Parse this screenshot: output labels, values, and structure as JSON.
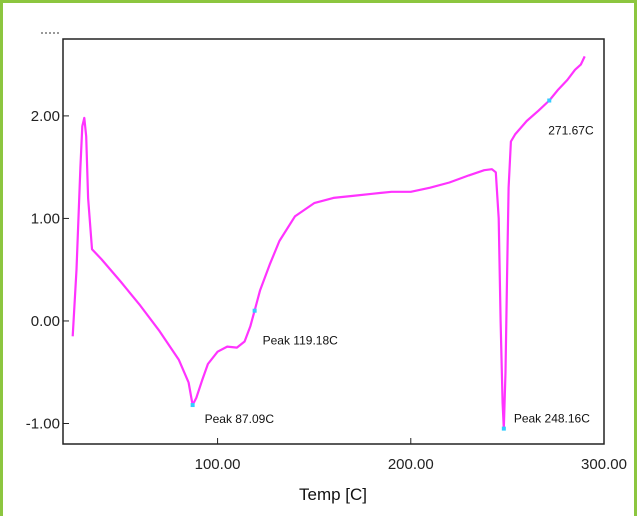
{
  "chart_data": {
    "type": "line",
    "title": "",
    "xlabel": "Temp  [C]",
    "ylabel": "",
    "xlim": [
      20,
      300
    ],
    "ylim": [
      -1.2,
      2.75
    ],
    "x_ticks": [
      {
        "value": 100,
        "label": "100.00"
      },
      {
        "value": 200,
        "label": "200.00"
      },
      {
        "value": 300,
        "label": "300.00"
      }
    ],
    "y_ticks": [
      {
        "value": 2.0,
        "label": "2.00"
      },
      {
        "value": 1.0,
        "label": "1.00"
      },
      {
        "value": 0.0,
        "label": "0.00"
      },
      {
        "value": -1.0,
        "label": "-1.00"
      }
    ],
    "grid": false,
    "line_color": "#ff33ff",
    "marker_color": "#33ccff",
    "series": [
      {
        "x": [
          25,
          27,
          29,
          30,
          31,
          32,
          33,
          35,
          40,
          50,
          60,
          70,
          80,
          85,
          87.09,
          89,
          92,
          95,
          100,
          105,
          110,
          114,
          117,
          119.18,
          122,
          127,
          132,
          140,
          150,
          160,
          170,
          180,
          190,
          200,
          210,
          220,
          230,
          238,
          242,
          244,
          245.5,
          246.5,
          247.5,
          248.16,
          249,
          249.8,
          250.6,
          251.8,
          254,
          260,
          266,
          271.67,
          276,
          281,
          285,
          288,
          290
        ],
        "y": [
          -0.15,
          0.5,
          1.5,
          1.9,
          1.98,
          1.8,
          1.2,
          0.7,
          0.6,
          0.38,
          0.15,
          -0.1,
          -0.38,
          -0.6,
          -0.82,
          -0.75,
          -0.58,
          -0.42,
          -0.3,
          -0.25,
          -0.26,
          -0.2,
          -0.05,
          0.1,
          0.3,
          0.55,
          0.78,
          1.02,
          1.15,
          1.2,
          1.22,
          1.24,
          1.26,
          1.26,
          1.3,
          1.35,
          1.42,
          1.47,
          1.48,
          1.45,
          1.0,
          0.0,
          -0.8,
          -1.05,
          -0.5,
          0.4,
          1.3,
          1.75,
          1.82,
          1.95,
          2.05,
          2.15,
          2.25,
          2.35,
          2.45,
          2.5,
          2.58
        ]
      }
    ],
    "annotations": [
      {
        "x": 87.09,
        "y": -0.82,
        "text": "Peak  87.09C",
        "dx": 12,
        "dy": 18
      },
      {
        "x": 119.18,
        "y": 0.1,
        "text": "Peak  119.18C",
        "dx": 8,
        "dy": 34
      },
      {
        "x": 248.16,
        "y": -1.05,
        "text": "Peak  248.16C",
        "dx": 10,
        "dy": -6
      },
      {
        "x": 271.67,
        "y": 2.15,
        "text": "271.67C",
        "dx": -1,
        "dy": 34
      }
    ]
  }
}
